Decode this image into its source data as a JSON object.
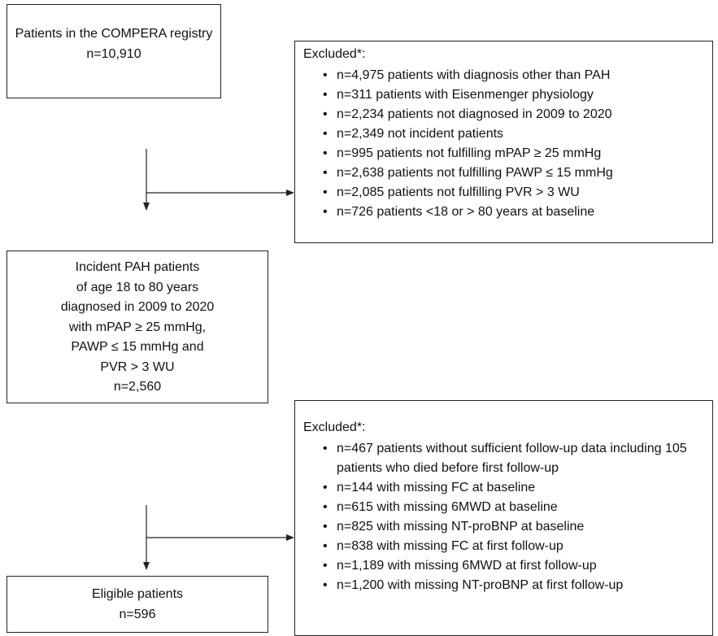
{
  "nodes": [
    {
      "lines": [
        "Patients in the COMPERA registry",
        "n=10,910"
      ]
    },
    {
      "lines": [
        "Incident PAH patients",
        "of age 18 to 80 years",
        "diagnosed in 2009 to 2020",
        "with mPAP ≥ 25 mmHg,",
        "PAWP ≤ 15 mmHg and",
        "PVR > 3 WU",
        "n=2,560"
      ]
    },
    {
      "lines": [
        "Eligible patients",
        "n=596"
      ]
    }
  ],
  "exclusions": [
    {
      "title": "Excluded*:",
      "items": [
        "n=4,975 patients with diagnosis other than PAH",
        "n=311 patients with Eisenmenger physiology",
        "n=2,234 patients not diagnosed in 2009 to 2020",
        "n=2,349 not incident patients",
        "n=995 patients not fulfilling mPAP ≥ 25 mmHg",
        "n=2,638 patients not fulfilling PAWP ≤ 15 mmHg",
        "n=2,085 patients not fulfilling PVR > 3 WU",
        "n=726 patients <18 or > 80 years at baseline"
      ]
    },
    {
      "title": "Excluded*:",
      "items": [
        "n=467 patients without sufficient follow-up data including 105 patients who died before first follow-up",
        "n=144 with missing FC at baseline",
        "n=615 with missing 6MWD at baseline",
        "n=825 with missing NT-proBNP at baseline",
        "n=838 with missing FC at first follow-up",
        "n=1,189 with missing 6MWD at first follow-up",
        "n=1,200 with missing NT-proBNP at first follow-up"
      ]
    }
  ]
}
